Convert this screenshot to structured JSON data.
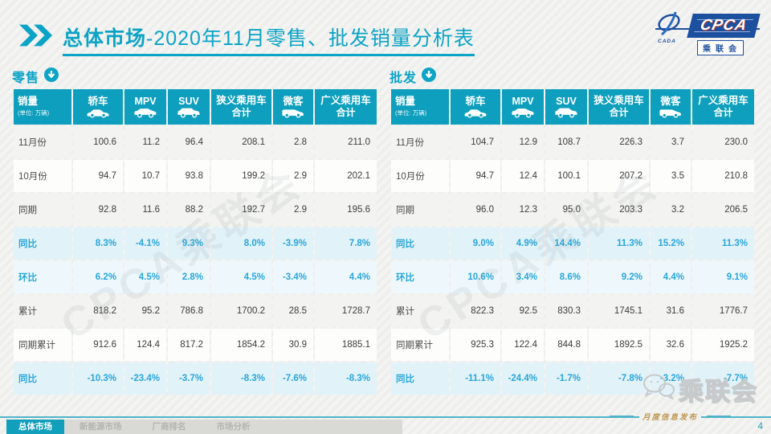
{
  "page": {
    "title_bold": "总体市场",
    "title_rest": "-2020年11月零售、批发销量分析表",
    "page_number": "4",
    "release_label": "月度信息发布"
  },
  "logo": {
    "cpca": "CPCA",
    "association": "乘联会",
    "swoosh_text": "CADA"
  },
  "colors": {
    "header_teal": "#0d9fbd",
    "title_teal": "#0ba3c6",
    "percent_blue": "#27a6da",
    "footer_gold": "#bf9750",
    "logo_blue": "#1d4f9f"
  },
  "watermark": {
    "table_text": "CPCA乘联会",
    "wechat_text": "乘联会"
  },
  "columns": [
    {
      "key": "sales",
      "label": "销量",
      "sub": "(单位: 万辆)"
    },
    {
      "key": "sedan",
      "label": "轿车",
      "icon": "sedan-icon"
    },
    {
      "key": "mpv",
      "label": "MPV",
      "icon": "mpv-icon"
    },
    {
      "key": "suv",
      "label": "SUV",
      "icon": "suv-icon"
    },
    {
      "key": "narrow",
      "label": "狭义乘用车",
      "label2": "合计"
    },
    {
      "key": "micro",
      "label": "微客",
      "icon": "van-icon"
    },
    {
      "key": "broad",
      "label": "广义乘用车",
      "label2": "合计"
    }
  ],
  "tables": [
    {
      "id": "retail",
      "section_title": "零售",
      "rows": [
        {
          "label": "11月份",
          "type": "value",
          "values": [
            "100.6",
            "11.2",
            "96.4",
            "208.1",
            "2.8",
            "211.0"
          ]
        },
        {
          "label": "10月份",
          "type": "value",
          "values": [
            "94.7",
            "10.7",
            "93.8",
            "199.2",
            "2.9",
            "202.1"
          ]
        },
        {
          "label": "同期",
          "type": "value",
          "values": [
            "92.8",
            "11.6",
            "88.2",
            "192.7",
            "2.9",
            "195.6"
          ]
        },
        {
          "label": "同比",
          "type": "percent",
          "values": [
            "8.3%",
            "-4.1%",
            "9.3%",
            "8.0%",
            "-3.9%",
            "7.8%"
          ]
        },
        {
          "label": "环比",
          "type": "percent",
          "values": [
            "6.2%",
            "4.5%",
            "2.8%",
            "4.5%",
            "-3.4%",
            "4.4%"
          ]
        },
        {
          "label": "累计",
          "type": "value",
          "values": [
            "818.2",
            "95.2",
            "786.8",
            "1700.2",
            "28.5",
            "1728.7"
          ]
        },
        {
          "label": "同期累计",
          "type": "value",
          "values": [
            "912.6",
            "124.4",
            "817.2",
            "1854.2",
            "30.9",
            "1885.1"
          ]
        },
        {
          "label": "同比",
          "type": "percent",
          "values": [
            "-10.3%",
            "-23.4%",
            "-3.7%",
            "-8.3%",
            "-7.6%",
            "-8.3%"
          ]
        }
      ]
    },
    {
      "id": "wholesale",
      "section_title": "批发",
      "rows": [
        {
          "label": "11月份",
          "type": "value",
          "values": [
            "104.7",
            "12.9",
            "108.7",
            "226.3",
            "3.7",
            "230.0"
          ]
        },
        {
          "label": "10月份",
          "type": "value",
          "values": [
            "94.7",
            "12.4",
            "100.1",
            "207.2",
            "3.5",
            "210.8"
          ]
        },
        {
          "label": "同期",
          "type": "value",
          "values": [
            "96.0",
            "12.3",
            "95.0",
            "203.3",
            "3.2",
            "206.5"
          ]
        },
        {
          "label": "同比",
          "type": "percent",
          "values": [
            "9.0%",
            "4.9%",
            "14.4%",
            "11.3%",
            "15.2%",
            "11.3%"
          ]
        },
        {
          "label": "环比",
          "type": "percent",
          "values": [
            "10.6%",
            "3.4%",
            "8.6%",
            "9.2%",
            "4.4%",
            "9.1%"
          ]
        },
        {
          "label": "累计",
          "type": "value",
          "values": [
            "822.3",
            "92.5",
            "830.3",
            "1745.1",
            "31.6",
            "1776.7"
          ]
        },
        {
          "label": "同期累计",
          "type": "value",
          "values": [
            "925.3",
            "122.4",
            "844.8",
            "1892.5",
            "32.6",
            "1925.2"
          ]
        },
        {
          "label": "同比",
          "type": "percent",
          "values": [
            "-11.1%",
            "-24.4%",
            "-1.7%",
            "-7.8%",
            "-3.2%",
            "-7.7%"
          ]
        }
      ]
    }
  ],
  "nav_tabs": [
    {
      "label": "总体市场",
      "active": true
    },
    {
      "label": "新能源市场",
      "active": false
    },
    {
      "label": "厂商排名",
      "active": false
    },
    {
      "label": "市场分析",
      "active": false
    }
  ]
}
